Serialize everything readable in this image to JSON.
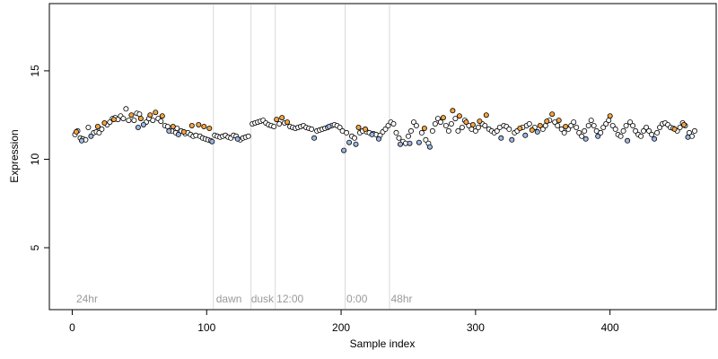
{
  "chart_data": {
    "type": "scatter",
    "title": "",
    "xlabel": "Sample index",
    "ylabel": "Expression",
    "xlim": [
      -17,
      479
    ],
    "ylim": [
      1.5,
      18.8
    ],
    "xticks": [
      0,
      100,
      200,
      300,
      400
    ],
    "yticks": [
      5,
      10,
      15
    ],
    "grid": false,
    "legend": "none",
    "vlines": [
      105,
      133,
      151,
      203,
      236
    ],
    "annotations": [
      {
        "text": "24hr",
        "x": 3,
        "y": 1.9
      },
      {
        "text": "dawn",
        "x": 107,
        "y": 1.9
      },
      {
        "text": "dusk",
        "x": 133,
        "y": 1.9
      },
      {
        "text": "12:00",
        "x": 152,
        "y": 1.9
      },
      {
        "text": "0:00",
        "x": 204,
        "y": 1.9
      },
      {
        "text": "48hr",
        "x": 237,
        "y": 1.9
      }
    ],
    "colors": {
      "black_group": "#000000",
      "orange_group": "#f4a442",
      "blue_group": "#9cb8e6",
      "vline": "#d9d9d9"
    },
    "series": [
      {
        "color": "orange",
        "points": [
          [
            3,
            11.55
          ],
          [
            19,
            11.85
          ],
          [
            24,
            12.05
          ],
          [
            31,
            12.25
          ],
          [
            44,
            12.5
          ],
          [
            51,
            12.3
          ],
          [
            58,
            12.5
          ],
          [
            62,
            12.65
          ],
          [
            67,
            12.45
          ],
          [
            75,
            11.85
          ],
          [
            83,
            11.55
          ],
          [
            89,
            11.9
          ],
          [
            94,
            11.95
          ],
          [
            98,
            11.85
          ],
          [
            102,
            11.75
          ],
          [
            152,
            12.25
          ],
          [
            156,
            12.35
          ],
          [
            160,
            12.1
          ],
          [
            213,
            11.8
          ],
          [
            218,
            11.7
          ],
          [
            262,
            11.75
          ],
          [
            276,
            12.35
          ],
          [
            283,
            12.75
          ],
          [
            288,
            12.45
          ],
          [
            293,
            12.1
          ],
          [
            298,
            11.95
          ],
          [
            303,
            12.15
          ],
          [
            308,
            12.5
          ],
          [
            333,
            11.75
          ],
          [
            342,
            11.65
          ],
          [
            348,
            11.9
          ],
          [
            353,
            12.15
          ],
          [
            357,
            12.55
          ],
          [
            362,
            12.2
          ],
          [
            367,
            11.85
          ],
          [
            400,
            12.45
          ],
          [
            448,
            11.7
          ],
          [
            455,
            11.95
          ]
        ]
      },
      {
        "color": "blue",
        "points": [
          [
            7,
            11.05
          ],
          [
            14,
            11.3
          ],
          [
            49,
            11.8
          ],
          [
            53,
            11.95
          ],
          [
            72,
            11.6
          ],
          [
            79,
            11.4
          ],
          [
            104,
            11.0
          ],
          [
            123,
            11.15
          ],
          [
            180,
            11.2
          ],
          [
            191,
            11.85
          ],
          [
            202,
            10.5
          ],
          [
            206,
            10.95
          ],
          [
            211,
            10.85
          ],
          [
            223,
            11.4
          ],
          [
            228,
            11.15
          ],
          [
            244,
            10.85
          ],
          [
            251,
            10.9
          ],
          [
            258,
            10.95
          ],
          [
            266,
            10.7
          ],
          [
            319,
            11.2
          ],
          [
            327,
            11.1
          ],
          [
            337,
            11.35
          ],
          [
            346,
            11.55
          ],
          [
            382,
            11.15
          ],
          [
            391,
            11.3
          ],
          [
            413,
            11.05
          ],
          [
            433,
            11.15
          ],
          [
            458,
            11.25
          ]
        ]
      },
      {
        "color": "white",
        "points": [
          [
            2,
            11.4
          ],
          [
            4,
            11.6
          ],
          [
            6,
            11.2
          ],
          [
            8,
            11.15
          ],
          [
            10,
            11.1
          ],
          [
            12,
            11.8
          ],
          [
            16,
            11.5
          ],
          [
            18,
            11.55
          ],
          [
            20,
            11.5
          ],
          [
            22,
            11.7
          ],
          [
            26,
            11.95
          ],
          [
            28,
            12.1
          ],
          [
            30,
            12.3
          ],
          [
            32,
            12.35
          ],
          [
            34,
            12.25
          ],
          [
            36,
            12.45
          ],
          [
            38,
            12.3
          ],
          [
            40,
            12.85
          ],
          [
            42,
            12.2
          ],
          [
            46,
            12.2
          ],
          [
            48,
            12.6
          ],
          [
            50,
            12.55
          ],
          [
            55,
            12.1
          ],
          [
            57,
            12.3
          ],
          [
            60,
            12.2
          ],
          [
            64,
            12.3
          ],
          [
            66,
            12.15
          ],
          [
            69,
            11.9
          ],
          [
            71,
            11.85
          ],
          [
            74,
            11.6
          ],
          [
            77,
            11.5
          ],
          [
            78,
            11.75
          ],
          [
            81,
            11.6
          ],
          [
            84,
            11.45
          ],
          [
            86,
            11.5
          ],
          [
            88,
            11.4
          ],
          [
            90,
            11.3
          ],
          [
            92,
            11.35
          ],
          [
            95,
            11.3
          ],
          [
            97,
            11.2
          ],
          [
            99,
            11.15
          ],
          [
            101,
            11.1
          ],
          [
            103,
            11.05
          ],
          [
            106,
            11.35
          ],
          [
            108,
            11.3
          ],
          [
            110,
            11.25
          ],
          [
            112,
            11.3
          ],
          [
            114,
            11.35
          ],
          [
            116,
            11.25
          ],
          [
            118,
            11.2
          ],
          [
            120,
            11.35
          ],
          [
            122,
            11.3
          ],
          [
            125,
            11.1
          ],
          [
            127,
            11.2
          ],
          [
            129,
            11.25
          ],
          [
            131,
            11.3
          ],
          [
            134,
            12.0
          ],
          [
            136,
            12.05
          ],
          [
            138,
            12.1
          ],
          [
            140,
            12.15
          ],
          [
            142,
            12.2
          ],
          [
            144,
            12.05
          ],
          [
            146,
            11.95
          ],
          [
            148,
            11.9
          ],
          [
            150,
            11.85
          ],
          [
            154,
            12.0
          ],
          [
            158,
            12.05
          ],
          [
            162,
            11.85
          ],
          [
            164,
            11.8
          ],
          [
            166,
            11.75
          ],
          [
            168,
            11.8
          ],
          [
            170,
            11.85
          ],
          [
            172,
            11.9
          ],
          [
            174,
            11.8
          ],
          [
            176,
            11.75
          ],
          [
            178,
            11.7
          ],
          [
            182,
            11.6
          ],
          [
            184,
            11.65
          ],
          [
            186,
            11.7
          ],
          [
            188,
            11.75
          ],
          [
            190,
            11.8
          ],
          [
            193,
            11.9
          ],
          [
            195,
            11.95
          ],
          [
            197,
            11.9
          ],
          [
            199,
            11.8
          ],
          [
            201,
            11.6
          ],
          [
            204,
            11.5
          ],
          [
            208,
            11.3
          ],
          [
            210,
            11.2
          ],
          [
            214,
            11.5
          ],
          [
            216,
            11.6
          ],
          [
            219,
            11.55
          ],
          [
            221,
            11.5
          ],
          [
            224,
            11.45
          ],
          [
            226,
            11.4
          ],
          [
            229,
            11.35
          ],
          [
            231,
            11.55
          ],
          [
            233,
            11.7
          ],
          [
            235,
            11.9
          ],
          [
            237,
            12.1
          ],
          [
            239,
            12.0
          ],
          [
            241,
            11.5
          ],
          [
            243,
            11.2
          ],
          [
            246,
            11.0
          ],
          [
            248,
            10.9
          ],
          [
            250,
            11.3
          ],
          [
            252,
            11.6
          ],
          [
            254,
            12.1
          ],
          [
            256,
            11.9
          ],
          [
            260,
            11.5
          ],
          [
            263,
            11.1
          ],
          [
            265,
            10.9
          ],
          [
            268,
            11.6
          ],
          [
            270,
            12.0
          ],
          [
            272,
            12.3
          ],
          [
            274,
            12.1
          ],
          [
            278,
            11.9
          ],
          [
            280,
            11.6
          ],
          [
            282,
            12.0
          ],
          [
            285,
            12.3
          ],
          [
            287,
            11.6
          ],
          [
            290,
            11.8
          ],
          [
            292,
            12.2
          ],
          [
            295,
            11.9
          ],
          [
            297,
            11.7
          ],
          [
            300,
            11.6
          ],
          [
            302,
            11.8
          ],
          [
            305,
            12.0
          ],
          [
            307,
            11.9
          ],
          [
            310,
            11.7
          ],
          [
            312,
            11.6
          ],
          [
            314,
            11.5
          ],
          [
            316,
            11.6
          ],
          [
            318,
            11.8
          ],
          [
            321,
            11.9
          ],
          [
            323,
            11.85
          ],
          [
            325,
            11.7
          ],
          [
            329,
            11.5
          ],
          [
            331,
            11.6
          ],
          [
            335,
            11.8
          ],
          [
            338,
            11.9
          ],
          [
            340,
            12.0
          ],
          [
            344,
            11.8
          ],
          [
            350,
            11.7
          ],
          [
            352,
            11.9
          ],
          [
            355,
            12.2
          ],
          [
            359,
            12.1
          ],
          [
            361,
            11.9
          ],
          [
            364,
            11.7
          ],
          [
            366,
            11.5
          ],
          [
            369,
            11.7
          ],
          [
            371,
            11.9
          ],
          [
            373,
            12.1
          ],
          [
            375,
            11.8
          ],
          [
            377,
            11.5
          ],
          [
            379,
            11.3
          ],
          [
            381,
            11.6
          ],
          [
            384,
            11.9
          ],
          [
            386,
            12.2
          ],
          [
            388,
            11.9
          ],
          [
            390,
            11.6
          ],
          [
            393,
            11.5
          ],
          [
            395,
            11.8
          ],
          [
            397,
            12.0
          ],
          [
            399,
            12.2
          ],
          [
            402,
            11.9
          ],
          [
            404,
            11.7
          ],
          [
            406,
            11.4
          ],
          [
            408,
            11.3
          ],
          [
            410,
            11.6
          ],
          [
            412,
            11.9
          ],
          [
            415,
            12.1
          ],
          [
            417,
            11.9
          ],
          [
            419,
            11.6
          ],
          [
            421,
            11.4
          ],
          [
            423,
            11.3
          ],
          [
            425,
            11.6
          ],
          [
            427,
            11.8
          ],
          [
            429,
            11.6
          ],
          [
            431,
            11.4
          ],
          [
            435,
            11.5
          ],
          [
            437,
            11.8
          ],
          [
            439,
            12.0
          ],
          [
            441,
            12.05
          ],
          [
            443,
            11.95
          ],
          [
            445,
            11.8
          ],
          [
            447,
            11.75
          ],
          [
            450,
            11.6
          ],
          [
            452,
            11.8
          ],
          [
            454,
            12.05
          ],
          [
            456,
            11.9
          ],
          [
            459,
            11.5
          ],
          [
            461,
            11.3
          ],
          [
            463,
            11.6
          ]
        ]
      }
    ]
  }
}
